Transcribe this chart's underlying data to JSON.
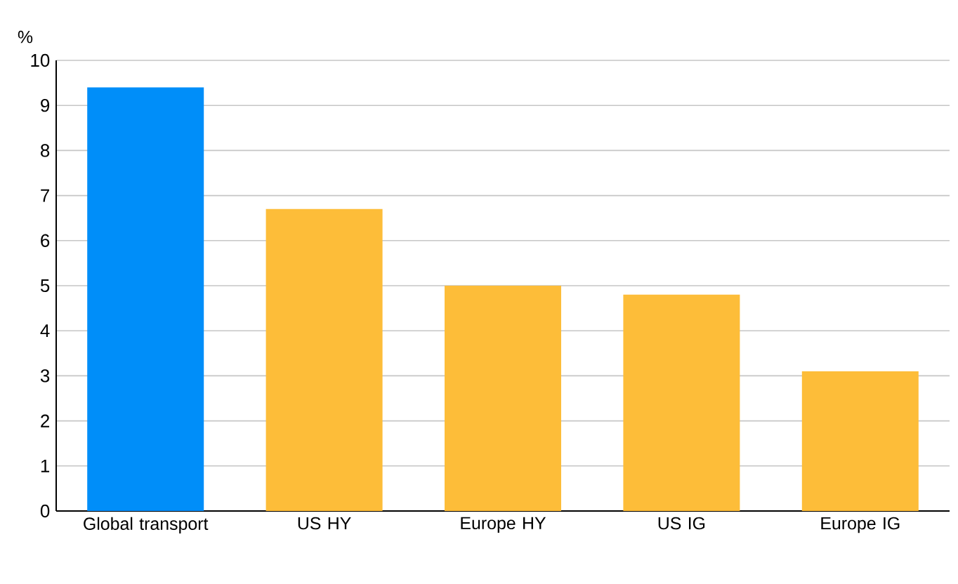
{
  "chart_data": {
    "type": "bar",
    "ylabel": "%",
    "categories": [
      "Global transport",
      "US HY",
      "Europe HY",
      "US IG",
      "Europe IG"
    ],
    "values": [
      9.4,
      6.7,
      5.0,
      4.8,
      3.1
    ],
    "colors": [
      "#008ef9",
      "#fdbd39",
      "#fdbd39",
      "#fdbd39",
      "#fdbd39"
    ],
    "ylim": [
      0,
      10
    ],
    "yticks": [
      0,
      1,
      2,
      3,
      4,
      5,
      6,
      7,
      8,
      9,
      10
    ],
    "grid": "y"
  }
}
